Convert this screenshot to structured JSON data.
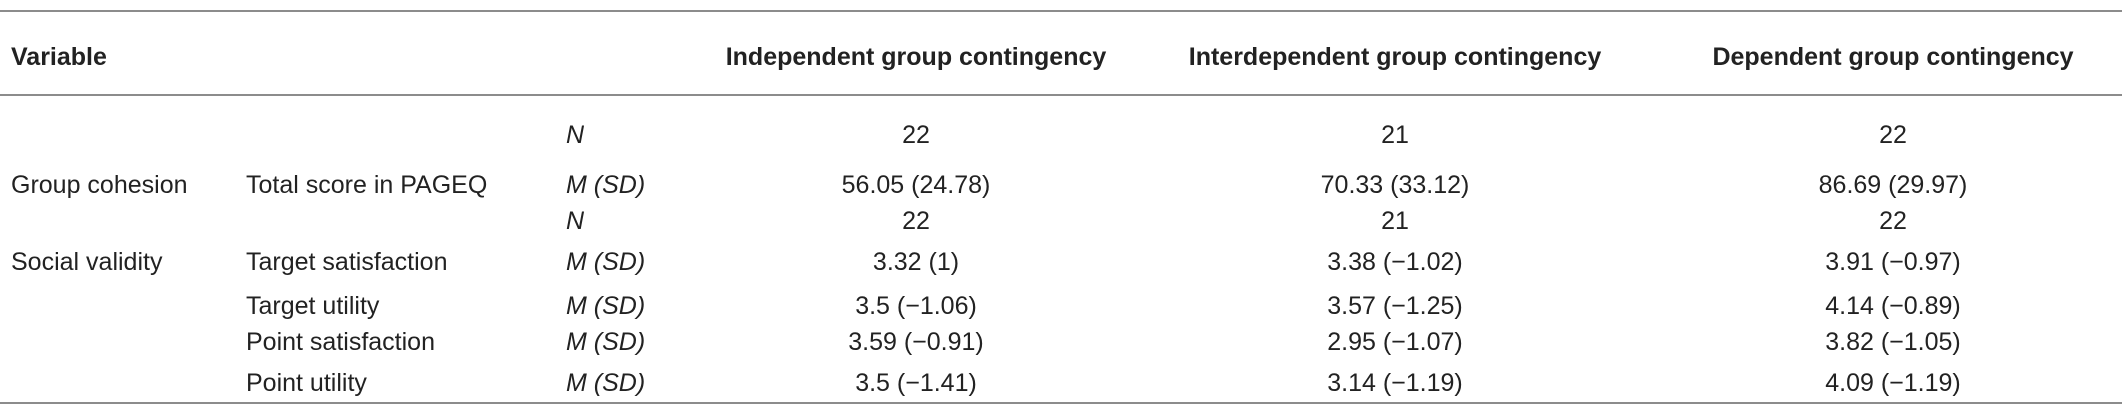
{
  "table": {
    "header": [
      "Variable",
      "Independent group contingency",
      "Interdependent group contingency",
      "Dependent group contingency"
    ],
    "rows": [
      {
        "stat": "N",
        "values": [
          22,
          21,
          22
        ]
      },
      {
        "variable": "Group cohesion",
        "measure": "Total score in PAGEQ",
        "stat": "M (SD)",
        "values": [
          "56.05 (24.78)",
          "70.33 (33.12)",
          "86.69 (29.97)"
        ]
      },
      {
        "stat": "N",
        "values": [
          22,
          21,
          22
        ]
      },
      {
        "variable": "Social validity",
        "measure": "Target satisfaction",
        "stat": "M (SD)",
        "values": [
          "3.32 (1)",
          "3.38 (−1.02)",
          "3.91 (−0.97)"
        ]
      },
      {
        "measure": "Target utility",
        "stat": "M (SD)",
        "values": [
          "3.5 (−1.06)",
          "3.57 (−1.25)",
          "4.14 (−0.89)"
        ]
      },
      {
        "measure": "Point satisfaction",
        "stat": "M (SD)",
        "values": [
          "3.59 (−0.91)",
          "2.95 (−1.07)",
          "3.82 (−1.05)"
        ]
      },
      {
        "measure": "Point utility",
        "stat": "M (SD)",
        "values": [
          "3.5 (−1.41)",
          "3.14 (−1.19)",
          "4.09 (−1.19)"
        ]
      }
    ]
  }
}
